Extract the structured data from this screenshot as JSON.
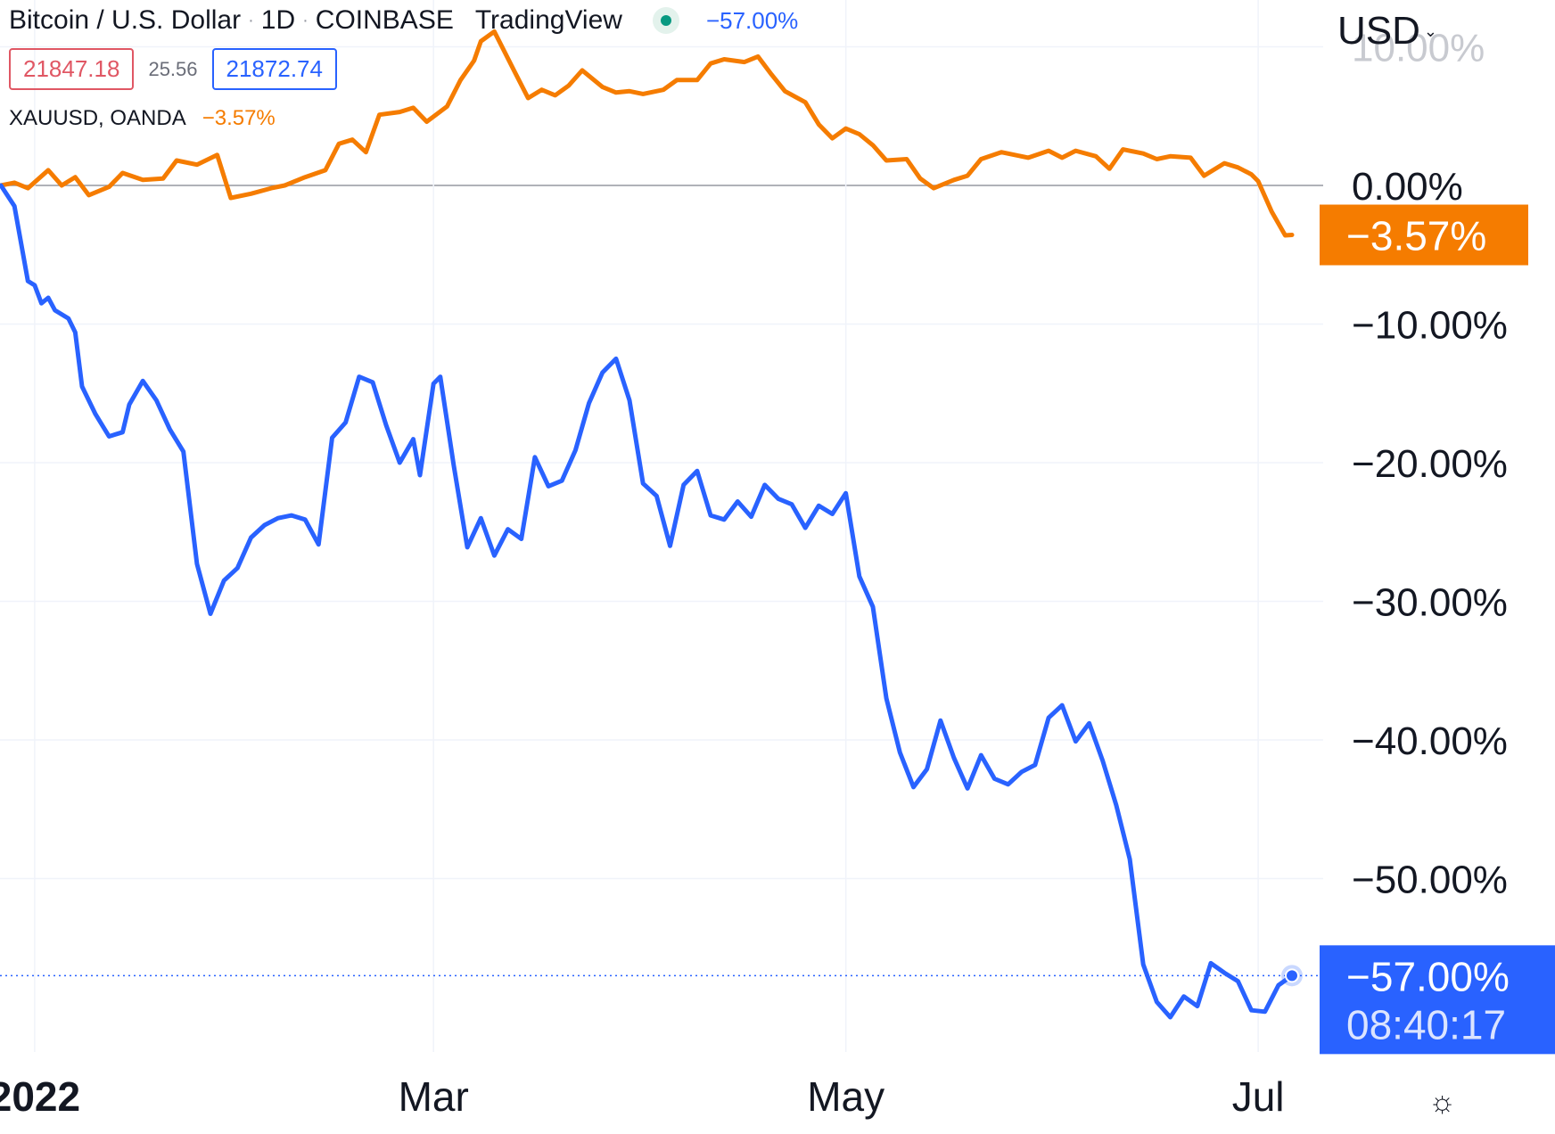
{
  "header": {
    "symbol": "Bitcoin / U.S. Dollar",
    "interval": "1D",
    "exchange": "COINBASE",
    "brand": "TradingView",
    "main_change": "−57.00%",
    "bid": "21847.18",
    "spread": "25.56",
    "ask": "21872.74",
    "compare_symbol": "XAUUSD, OANDA",
    "compare_change": "−3.57%"
  },
  "currency": "USD",
  "icons": {
    "dot": "middle-dot-separator",
    "caret": "chevron-down-icon",
    "settings": "sun-gear-icon",
    "status": "market-status-icon"
  },
  "colors": {
    "btc": "#2962ff",
    "gold": "#f57c00",
    "grid": "#f0f3fa",
    "zero": "#9598a1",
    "text": "#131722"
  },
  "chart_data": {
    "type": "line",
    "title": "",
    "x_unit": "date",
    "x_ticks": [
      {
        "x": "2022-01-01",
        "label": "2022"
      },
      {
        "x": "2022-03-01",
        "label": "Mar"
      },
      {
        "x": "2022-05-01",
        "label": "May"
      },
      {
        "x": "2022-07-01",
        "label": "Jul"
      }
    ],
    "ylim": [
      -60,
      13
    ],
    "y_ticks": [
      0,
      -10,
      -20,
      -30,
      -40,
      -50
    ],
    "y_tick_labels": [
      "0.00%",
      "−10.00%",
      "−20.00%",
      "−30.00%",
      "−40.00%",
      "−50.00%"
    ],
    "y_top_label": "10.00%",
    "last_labels": [
      {
        "series": "XAUUSD",
        "text": "−3.57%",
        "value": -3.57
      },
      {
        "series": "BTCUSD",
        "text": "−57.00%",
        "value": -57.0,
        "countdown": "08:40:17"
      }
    ],
    "series": [
      {
        "name": "XAUUSD",
        "color": "#f57c00",
        "points": [
          [
            "2021-12-27",
            0.0
          ],
          [
            "2021-12-29",
            0.2
          ],
          [
            "2021-12-31",
            -0.2
          ],
          [
            "2022-01-03",
            1.1
          ],
          [
            "2022-01-05",
            0.0
          ],
          [
            "2022-01-07",
            0.6
          ],
          [
            "2022-01-09",
            -0.7
          ],
          [
            "2022-01-12",
            -0.1
          ],
          [
            "2022-01-14",
            0.9
          ],
          [
            "2022-01-17",
            0.4
          ],
          [
            "2022-01-20",
            0.5
          ],
          [
            "2022-01-22",
            1.8
          ],
          [
            "2022-01-25",
            1.5
          ],
          [
            "2022-01-28",
            2.2
          ],
          [
            "2022-01-30",
            -0.9
          ],
          [
            "2022-02-02",
            -0.6
          ],
          [
            "2022-02-05",
            -0.2
          ],
          [
            "2022-02-07",
            0.0
          ],
          [
            "2022-02-10",
            0.6
          ],
          [
            "2022-02-13",
            1.1
          ],
          [
            "2022-02-15",
            3.0
          ],
          [
            "2022-02-17",
            3.3
          ],
          [
            "2022-02-19",
            2.4
          ],
          [
            "2022-02-21",
            5.1
          ],
          [
            "2022-02-24",
            5.3
          ],
          [
            "2022-02-26",
            5.6
          ],
          [
            "2022-02-28",
            4.6
          ],
          [
            "2022-03-03",
            5.7
          ],
          [
            "2022-03-05",
            7.6
          ],
          [
            "2022-03-07",
            9.0
          ],
          [
            "2022-03-08",
            10.4
          ],
          [
            "2022-03-10",
            11.1
          ],
          [
            "2022-03-13",
            8.2
          ],
          [
            "2022-03-15",
            6.3
          ],
          [
            "2022-03-17",
            6.9
          ],
          [
            "2022-03-19",
            6.5
          ],
          [
            "2022-03-21",
            7.2
          ],
          [
            "2022-03-23",
            8.3
          ],
          [
            "2022-03-26",
            7.1
          ],
          [
            "2022-03-28",
            6.7
          ],
          [
            "2022-03-30",
            6.8
          ],
          [
            "2022-04-01",
            6.6
          ],
          [
            "2022-04-04",
            6.9
          ],
          [
            "2022-04-06",
            7.6
          ],
          [
            "2022-04-09",
            7.6
          ],
          [
            "2022-04-11",
            8.8
          ],
          [
            "2022-04-13",
            9.1
          ],
          [
            "2022-04-16",
            8.9
          ],
          [
            "2022-04-18",
            9.3
          ],
          [
            "2022-04-20",
            8.0
          ],
          [
            "2022-04-22",
            6.8
          ],
          [
            "2022-04-25",
            6.0
          ],
          [
            "2022-04-27",
            4.4
          ],
          [
            "2022-04-29",
            3.4
          ],
          [
            "2022-05-01",
            4.1
          ],
          [
            "2022-05-03",
            3.7
          ],
          [
            "2022-05-05",
            2.9
          ],
          [
            "2022-05-07",
            1.8
          ],
          [
            "2022-05-10",
            1.9
          ],
          [
            "2022-05-12",
            0.5
          ],
          [
            "2022-05-14",
            -0.2
          ],
          [
            "2022-05-17",
            0.4
          ],
          [
            "2022-05-19",
            0.7
          ],
          [
            "2022-05-21",
            1.9
          ],
          [
            "2022-05-24",
            2.4
          ],
          [
            "2022-05-26",
            2.2
          ],
          [
            "2022-05-28",
            2.0
          ],
          [
            "2022-05-31",
            2.5
          ],
          [
            "2022-06-02",
            2.0
          ],
          [
            "2022-06-04",
            2.5
          ],
          [
            "2022-06-07",
            2.1
          ],
          [
            "2022-06-09",
            1.2
          ],
          [
            "2022-06-11",
            2.6
          ],
          [
            "2022-06-14",
            2.3
          ],
          [
            "2022-06-16",
            1.9
          ],
          [
            "2022-06-18",
            2.1
          ],
          [
            "2022-06-21",
            2.0
          ],
          [
            "2022-06-23",
            0.7
          ],
          [
            "2022-06-26",
            1.6
          ],
          [
            "2022-06-28",
            1.3
          ],
          [
            "2022-06-30",
            0.8
          ],
          [
            "2022-07-01",
            0.3
          ],
          [
            "2022-07-03",
            -1.9
          ],
          [
            "2022-07-05",
            -3.6
          ],
          [
            "2022-07-06",
            -3.57
          ]
        ]
      },
      {
        "name": "BTCUSD",
        "color": "#2962ff",
        "points": [
          [
            "2021-12-27",
            0.0
          ],
          [
            "2021-12-29",
            -1.5
          ],
          [
            "2021-12-31",
            -6.9
          ],
          [
            "2022-01-01",
            -7.2
          ],
          [
            "2022-01-02",
            -8.5
          ],
          [
            "2022-01-03",
            -8.1
          ],
          [
            "2022-01-04",
            -9.0
          ],
          [
            "2022-01-06",
            -9.6
          ],
          [
            "2022-01-07",
            -10.6
          ],
          [
            "2022-01-08",
            -14.5
          ],
          [
            "2022-01-10",
            -16.5
          ],
          [
            "2022-01-12",
            -18.1
          ],
          [
            "2022-01-14",
            -17.8
          ],
          [
            "2022-01-15",
            -15.8
          ],
          [
            "2022-01-17",
            -14.1
          ],
          [
            "2022-01-19",
            -15.5
          ],
          [
            "2022-01-21",
            -17.6
          ],
          [
            "2022-01-23",
            -19.2
          ],
          [
            "2022-01-25",
            -27.3
          ],
          [
            "2022-01-27",
            -30.9
          ],
          [
            "2022-01-29",
            -28.5
          ],
          [
            "2022-01-31",
            -27.6
          ],
          [
            "2022-02-02",
            -25.4
          ],
          [
            "2022-02-04",
            -24.5
          ],
          [
            "2022-02-06",
            -24.0
          ],
          [
            "2022-02-08",
            -23.8
          ],
          [
            "2022-02-10",
            -24.1
          ],
          [
            "2022-02-12",
            -25.9
          ],
          [
            "2022-02-14",
            -18.2
          ],
          [
            "2022-02-16",
            -17.1
          ],
          [
            "2022-02-18",
            -13.8
          ],
          [
            "2022-02-20",
            -14.2
          ],
          [
            "2022-02-22",
            -17.3
          ],
          [
            "2022-02-24",
            -20.0
          ],
          [
            "2022-02-26",
            -18.3
          ],
          [
            "2022-02-27",
            -20.9
          ],
          [
            "2022-03-01",
            -14.3
          ],
          [
            "2022-03-02",
            -13.8
          ],
          [
            "2022-03-04",
            -20.2
          ],
          [
            "2022-03-06",
            -26.1
          ],
          [
            "2022-03-08",
            -24.0
          ],
          [
            "2022-03-10",
            -26.7
          ],
          [
            "2022-03-12",
            -24.8
          ],
          [
            "2022-03-14",
            -25.5
          ],
          [
            "2022-03-16",
            -19.6
          ],
          [
            "2022-03-18",
            -21.7
          ],
          [
            "2022-03-20",
            -21.3
          ],
          [
            "2022-03-22",
            -19.1
          ],
          [
            "2022-03-24",
            -15.7
          ],
          [
            "2022-03-26",
            -13.5
          ],
          [
            "2022-03-28",
            -12.5
          ],
          [
            "2022-03-30",
            -15.5
          ],
          [
            "2022-04-01",
            -21.5
          ],
          [
            "2022-04-03",
            -22.4
          ],
          [
            "2022-04-05",
            -26.0
          ],
          [
            "2022-04-07",
            -21.6
          ],
          [
            "2022-04-09",
            -20.6
          ],
          [
            "2022-04-11",
            -23.8
          ],
          [
            "2022-04-13",
            -24.1
          ],
          [
            "2022-04-15",
            -22.8
          ],
          [
            "2022-04-17",
            -23.9
          ],
          [
            "2022-04-19",
            -21.6
          ],
          [
            "2022-04-21",
            -22.6
          ],
          [
            "2022-04-23",
            -23.0
          ],
          [
            "2022-04-25",
            -24.7
          ],
          [
            "2022-04-27",
            -23.1
          ],
          [
            "2022-04-29",
            -23.7
          ],
          [
            "2022-05-01",
            -22.2
          ],
          [
            "2022-05-03",
            -28.2
          ],
          [
            "2022-05-05",
            -30.4
          ],
          [
            "2022-05-07",
            -37.0
          ],
          [
            "2022-05-09",
            -40.9
          ],
          [
            "2022-05-11",
            -43.4
          ],
          [
            "2022-05-13",
            -42.1
          ],
          [
            "2022-05-15",
            -38.6
          ],
          [
            "2022-05-17",
            -41.3
          ],
          [
            "2022-05-19",
            -43.5
          ],
          [
            "2022-05-21",
            -41.1
          ],
          [
            "2022-05-23",
            -42.8
          ],
          [
            "2022-05-25",
            -43.2
          ],
          [
            "2022-05-27",
            -42.3
          ],
          [
            "2022-05-29",
            -41.8
          ],
          [
            "2022-05-31",
            -38.4
          ],
          [
            "2022-06-02",
            -37.5
          ],
          [
            "2022-06-04",
            -40.1
          ],
          [
            "2022-06-06",
            -38.8
          ],
          [
            "2022-06-08",
            -41.5
          ],
          [
            "2022-06-10",
            -44.7
          ],
          [
            "2022-06-12",
            -48.6
          ],
          [
            "2022-06-14",
            -56.2
          ],
          [
            "2022-06-16",
            -58.9
          ],
          [
            "2022-06-18",
            -60.0
          ],
          [
            "2022-06-20",
            -58.5
          ],
          [
            "2022-06-22",
            -59.2
          ],
          [
            "2022-06-24",
            -56.1
          ],
          [
            "2022-06-26",
            -56.8
          ],
          [
            "2022-06-28",
            -57.4
          ],
          [
            "2022-06-30",
            -59.5
          ],
          [
            "2022-07-02",
            -59.6
          ],
          [
            "2022-07-04",
            -57.7
          ],
          [
            "2022-07-06",
            -57.0
          ]
        ]
      }
    ],
    "grid": true,
    "legend": "top-left"
  }
}
